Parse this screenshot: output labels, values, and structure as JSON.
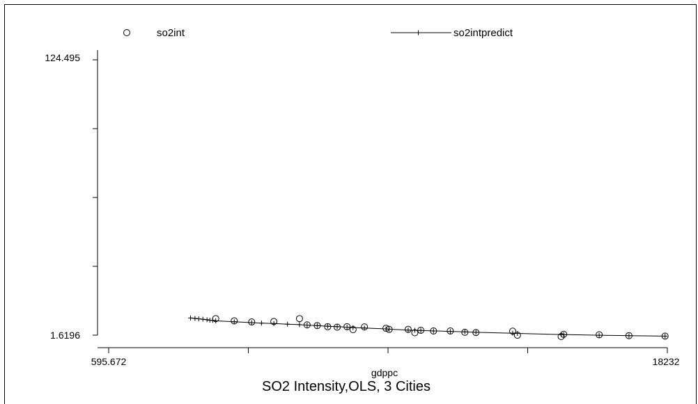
{
  "chart_data": {
    "type": "scatter",
    "title": "SO2 Intensity,OLS, 3 Cities",
    "xlabel": "gdppc",
    "ylabel": "",
    "xlim": [
      595.672,
      18232
    ],
    "ylim": [
      1.6196,
      124.495
    ],
    "x_tick_labels": [
      "595.672",
      "18232"
    ],
    "y_tick_labels": [
      "124.495",
      "1.6196"
    ],
    "grid": false,
    "legend_placement": "top",
    "series": [
      {
        "name": "so2int",
        "marker": "hollow-circle",
        "points": [
          [
            3975,
            9.0
          ],
          [
            4560,
            8.0
          ],
          [
            5110,
            7.5
          ],
          [
            5810,
            7.7
          ],
          [
            6620,
            9.0
          ],
          [
            6860,
            6.2
          ],
          [
            7180,
            5.9
          ],
          [
            7510,
            5.4
          ],
          [
            7810,
            5.2
          ],
          [
            8120,
            5.4
          ],
          [
            8310,
            4.1
          ],
          [
            8670,
            5.3
          ],
          [
            9350,
            4.7
          ],
          [
            9450,
            4.2
          ],
          [
            10050,
            4.2
          ],
          [
            10260,
            2.7
          ],
          [
            10450,
            3.8
          ],
          [
            10850,
            3.5
          ],
          [
            11380,
            3.5
          ],
          [
            11840,
            2.9
          ],
          [
            12190,
            2.8
          ],
          [
            13350,
            3.4
          ],
          [
            13500,
            1.6
          ],
          [
            14880,
            1.0
          ],
          [
            14960,
            2.0
          ],
          [
            16080,
            1.8
          ],
          [
            17020,
            1.4
          ],
          [
            18160,
            1.2
          ]
        ]
      },
      {
        "name": "so2intpredict",
        "marker": "plus",
        "line": true,
        "points": [
          [
            3180,
            9.3
          ],
          [
            3320,
            9.1
          ],
          [
            3440,
            8.9
          ],
          [
            3570,
            8.7
          ],
          [
            3700,
            8.5
          ],
          [
            3790,
            8.3
          ],
          [
            3880,
            8.2
          ],
          [
            3975,
            8.0
          ],
          [
            4560,
            7.6
          ],
          [
            5110,
            7.2
          ],
          [
            5420,
            7.0
          ],
          [
            5810,
            6.8
          ],
          [
            6240,
            6.5
          ],
          [
            6620,
            6.3
          ],
          [
            6860,
            6.1
          ],
          [
            7180,
            5.9
          ],
          [
            7510,
            5.6
          ],
          [
            7810,
            5.4
          ],
          [
            8120,
            5.2
          ],
          [
            8310,
            5.0
          ],
          [
            8670,
            4.8
          ],
          [
            9350,
            4.4
          ],
          [
            9450,
            4.3
          ],
          [
            10050,
            3.9
          ],
          [
            10260,
            3.8
          ],
          [
            10450,
            3.7
          ],
          [
            10850,
            3.5
          ],
          [
            11380,
            3.3
          ],
          [
            11840,
            3.1
          ],
          [
            12190,
            2.9
          ],
          [
            13350,
            2.5
          ],
          [
            13500,
            2.4
          ],
          [
            14880,
            1.9
          ],
          [
            14960,
            1.9
          ],
          [
            16080,
            1.6
          ],
          [
            17020,
            1.4
          ],
          [
            18160,
            1.2
          ]
        ]
      }
    ]
  }
}
